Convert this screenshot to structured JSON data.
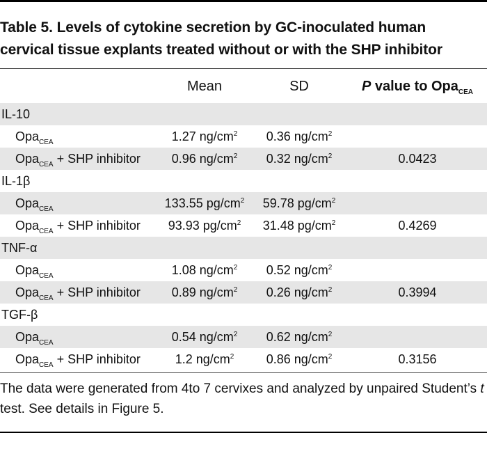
{
  "title": {
    "line1": "Table 5. Levels of cytokine secretion by GC-inoculated human",
    "line2": "cervical tissue explants treated without or with the SHP inhibitor"
  },
  "columns": {
    "mean": "Mean",
    "sd": "SD",
    "p_bold_italic": "P",
    "p_text": " value to Opa",
    "p_sub": "CEA"
  },
  "groups": [
    {
      "name": "IL-10",
      "rows": [
        {
          "base": "Opa",
          "sub": "CEA",
          "suffix": "",
          "mean": "1.27 ng/cm",
          "mean_sup": "2",
          "sd": "0.36 ng/cm",
          "sd_sup": "2",
          "p": ""
        },
        {
          "base": "Opa",
          "sub": "CEA",
          "suffix": " + SHP inhibitor",
          "mean": "0.96 ng/cm",
          "mean_sup": "2",
          "sd": "0.32 ng/cm",
          "sd_sup": "2",
          "p": "0.0423"
        }
      ]
    },
    {
      "name": "IL-1β",
      "rows": [
        {
          "base": "Opa",
          "sub": "CEA",
          "suffix": "",
          "mean": "133.55 pg/cm",
          "mean_sup": "2",
          "sd": "59.78 pg/cm",
          "sd_sup": "2",
          "p": ""
        },
        {
          "base": "Opa",
          "sub": "CEA",
          "suffix": " + SHP inhibitor",
          "mean": "93.93 pg/cm",
          "mean_sup": "2",
          "sd": "31.48 pg/cm",
          "sd_sup": "2",
          "p": "0.4269"
        }
      ]
    },
    {
      "name": "TNF-α",
      "rows": [
        {
          "base": "Opa",
          "sub": "CEA",
          "suffix": "",
          "mean": "1.08 ng/cm",
          "mean_sup": "2",
          "sd": "0.52 ng/cm",
          "sd_sup": "2",
          "p": ""
        },
        {
          "base": "Opa",
          "sub": "CEA",
          "suffix": " + SHP inhibitor",
          "mean": "0.89 ng/cm",
          "mean_sup": "2",
          "sd": "0.26 ng/cm",
          "sd_sup": "2",
          "p": "0.3994"
        }
      ]
    },
    {
      "name": "TGF-β",
      "rows": [
        {
          "base": "Opa",
          "sub": "CEA",
          "suffix": "",
          "mean": "0.54 ng/cm",
          "mean_sup": "2",
          "sd": "0.62 ng/cm",
          "sd_sup": "2",
          "p": ""
        },
        {
          "base": "Opa",
          "sub": "CEA",
          "suffix": " + SHP inhibitor",
          "mean": "1.2 ng/cm",
          "mean_sup": "2",
          "sd": "0.86 ng/cm",
          "sd_sup": "2",
          "p": "0.3156"
        }
      ]
    }
  ],
  "footnote": {
    "part1": "The data were generated from 4to 7 cervixes and analyzed by unpaired Student’s ",
    "italic": "t",
    "part2": " test. See details in Figure 5."
  }
}
